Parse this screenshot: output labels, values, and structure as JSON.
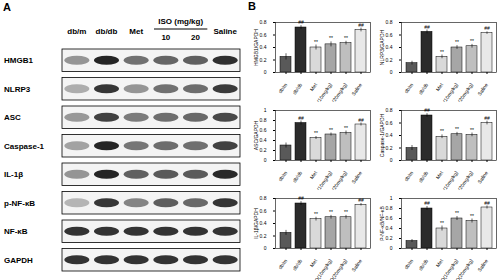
{
  "chart_data": [
    {
      "type": "bar",
      "ylabel": "HMGB1/GAPDH",
      "categories": [
        "db/m",
        "db/db",
        "Met",
        "ISO(10mg/kg)",
        "ISO(20mg/kg)",
        "Saline"
      ],
      "values": [
        0.25,
        0.72,
        0.4,
        0.45,
        0.47,
        0.68
      ],
      "errors": [
        0.05,
        0.03,
        0.04,
        0.04,
        0.03,
        0.03
      ],
      "annotations": [
        null,
        "##",
        "**",
        "**",
        "**",
        "##"
      ],
      "colors": [
        "#595959",
        "#2b2b2b",
        "#d9d9d9",
        "#a6a6a6",
        "#bfbfbf",
        "#e8e8e8"
      ],
      "ylim": [
        0,
        0.8
      ],
      "yticks": [
        0,
        0.2,
        0.4,
        0.6,
        0.8
      ]
    },
    {
      "type": "bar",
      "ylabel": "NLRP3/GAPDH",
      "categories": [
        "db/m",
        "db/db",
        "Met",
        "ISO(10mg/kg)",
        "ISO(20mg/kg)",
        "Saline"
      ],
      "values": [
        0.15,
        0.65,
        0.25,
        0.4,
        0.42,
        0.63
      ],
      "errors": [
        0.03,
        0.03,
        0.03,
        0.03,
        0.03,
        0.02
      ],
      "annotations": [
        null,
        "##",
        "**",
        "**",
        "**",
        "##"
      ],
      "colors": [
        "#595959",
        "#2b2b2b",
        "#d9d9d9",
        "#a6a6a6",
        "#bfbfbf",
        "#e8e8e8"
      ],
      "ylim": [
        0,
        0.8
      ],
      "yticks": [
        0,
        0.2,
        0.4,
        0.6,
        0.8
      ]
    },
    {
      "type": "bar",
      "ylabel": "ASC/GAPDH",
      "categories": [
        "db/m",
        "db/db",
        "Met",
        "ISO(10mg/kg)",
        "ISO(20mg/kg)",
        "Saline"
      ],
      "values": [
        0.3,
        0.75,
        0.45,
        0.52,
        0.55,
        0.72
      ],
      "errors": [
        0.05,
        0.04,
        0.03,
        0.03,
        0.04,
        0.03
      ],
      "annotations": [
        null,
        "##",
        "**",
        "**",
        "**",
        "##"
      ],
      "colors": [
        "#595959",
        "#2b2b2b",
        "#d9d9d9",
        "#a6a6a6",
        "#bfbfbf",
        "#e8e8e8"
      ],
      "ylim": [
        0,
        1
      ],
      "yticks": [
        0,
        0.2,
        0.4,
        0.6,
        0.8,
        1
      ]
    },
    {
      "type": "bar",
      "ylabel": "Caspase-1/GAPDH",
      "categories": [
        "db/m",
        "db/db",
        "Met",
        "ISO(10mg/kg)",
        "ISO(20mg/kg)",
        "Saline"
      ],
      "values": [
        0.2,
        0.72,
        0.38,
        0.42,
        0.41,
        0.6
      ],
      "errors": [
        0.04,
        0.03,
        0.03,
        0.03,
        0.03,
        0.03
      ],
      "annotations": [
        null,
        "##",
        "**",
        "**",
        "**",
        "##"
      ],
      "colors": [
        "#595959",
        "#2b2b2b",
        "#d9d9d9",
        "#a6a6a6",
        "#bfbfbf",
        "#e8e8e8"
      ],
      "ylim": [
        0,
        0.8
      ],
      "yticks": [
        0,
        0.2,
        0.4,
        0.6,
        0.8
      ]
    },
    {
      "type": "bar",
      "ylabel": "IL-1β/GAPDH",
      "categories": [
        "db/m",
        "db/db",
        "Met",
        "ISO(10mg/kg)",
        "ISO(20mg/kg)",
        "Saline"
      ],
      "values": [
        0.25,
        0.72,
        0.47,
        0.5,
        0.5,
        0.7
      ],
      "errors": [
        0.04,
        0.03,
        0.03,
        0.03,
        0.03,
        0.02
      ],
      "annotations": [
        null,
        "##",
        "**",
        "**",
        "**",
        "##"
      ],
      "colors": [
        "#595959",
        "#2b2b2b",
        "#d9d9d9",
        "#a6a6a6",
        "#bfbfbf",
        "#e8e8e8"
      ],
      "ylim": [
        0,
        0.8
      ],
      "yticks": [
        0,
        0.2,
        0.4,
        0.6,
        0.8
      ]
    },
    {
      "type": "bar",
      "ylabel": "P-NF-κB/NF-κB",
      "categories": [
        "db/m",
        "db/db",
        "Met",
        "ISO(10mg/kg)",
        "ISO(20mg/kg)",
        "Saline"
      ],
      "values": [
        0.15,
        0.8,
        0.4,
        0.6,
        0.55,
        0.82
      ],
      "errors": [
        0.03,
        0.04,
        0.05,
        0.04,
        0.04,
        0.03
      ],
      "annotations": [
        null,
        "##",
        "**",
        "**",
        "**",
        "##"
      ],
      "colors": [
        "#595959",
        "#2b2b2b",
        "#d9d9d9",
        "#a6a6a6",
        "#bfbfbf",
        "#e8e8e8"
      ],
      "ylim": [
        0,
        1
      ],
      "yticks": [
        0,
        0.2,
        0.4,
        0.6,
        0.8,
        1
      ]
    }
  ],
  "blot": {
    "panel": "A",
    "columns": [
      "db/m",
      "db/db",
      "Met",
      "10",
      "20",
      "Saline"
    ],
    "group": "ISO (mg/kg)",
    "rows": [
      "HMGB1",
      "NLRP3",
      "ASC",
      "Caspase-1",
      "IL-1β",
      "p-NF-κB",
      "NF-κB",
      "GAPDH"
    ]
  },
  "panel_b": "B"
}
